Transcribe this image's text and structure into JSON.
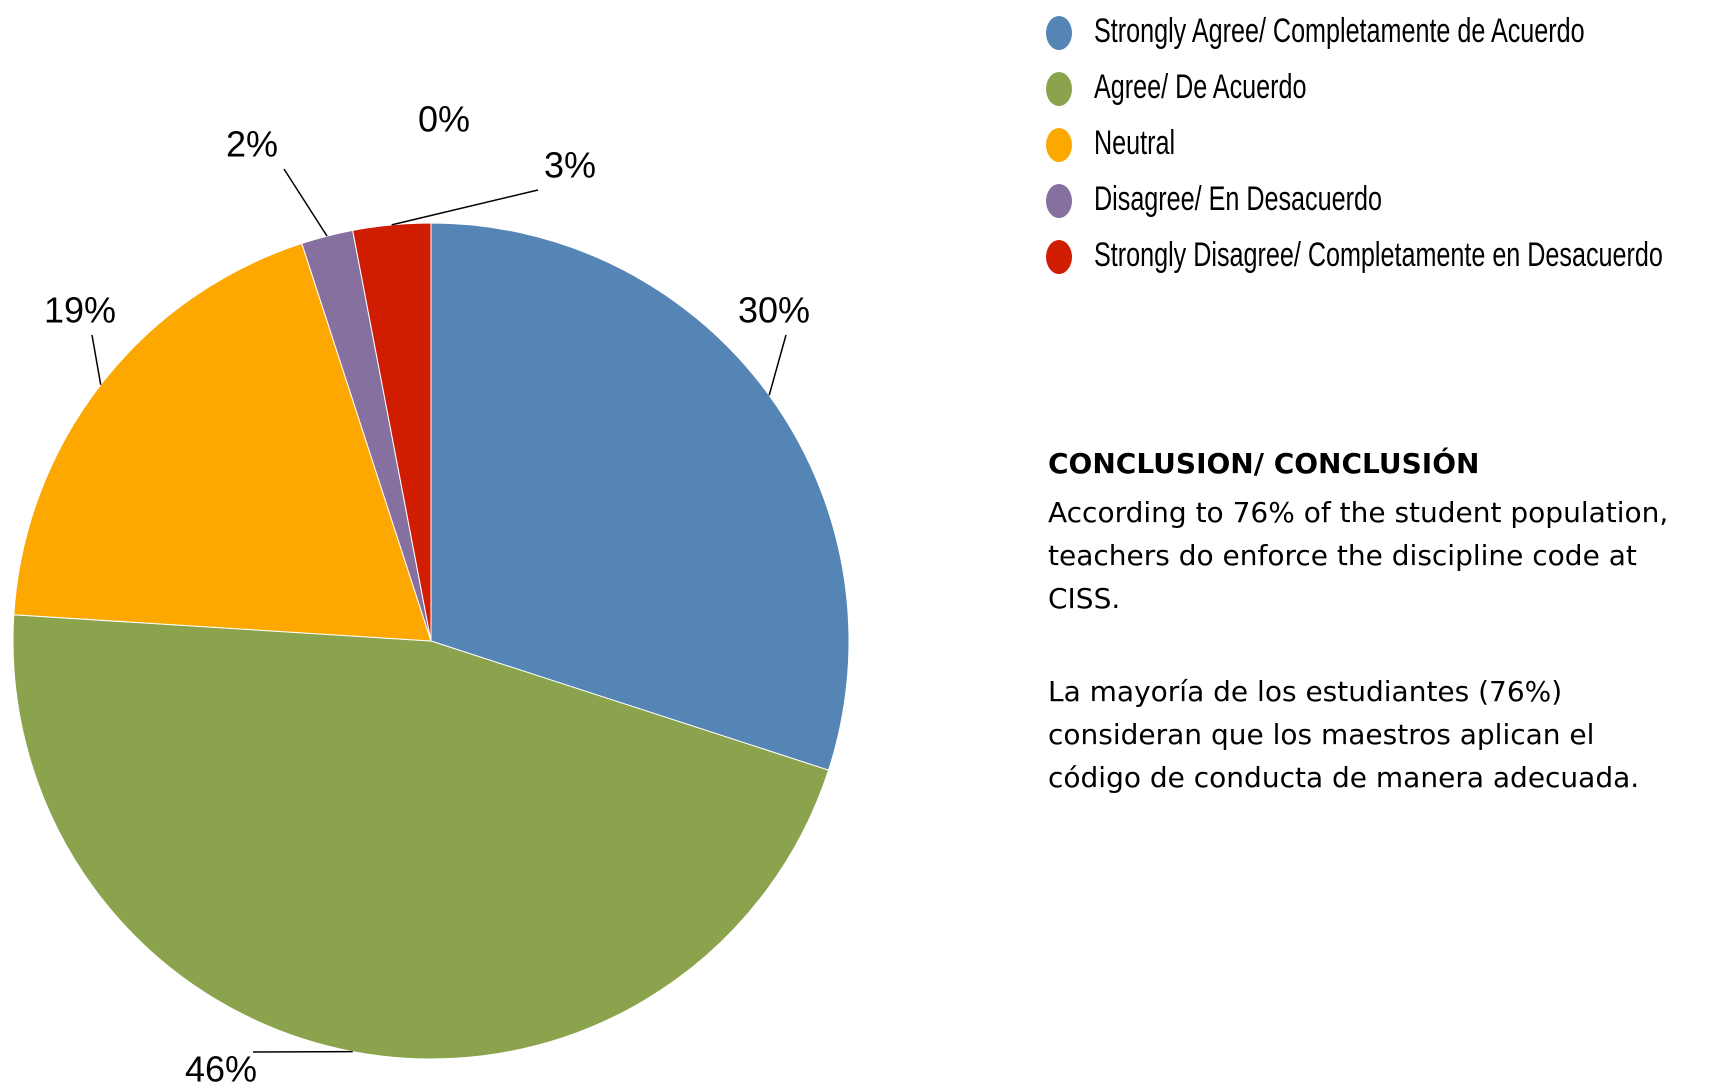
{
  "chart_data": {
    "type": "pie",
    "categories": [
      "Strongly Agree/ Completamente de Acuerdo",
      "Agree/ De Acuerdo",
      "Neutral",
      "Disagree/ En Desacuerdo",
      null,
      "Strongly Disagree/ Completamente en Desacuerdo"
    ],
    "values": [
      30,
      46,
      19,
      2,
      0,
      3
    ],
    "value_labels": [
      "30%",
      "46%",
      "19%",
      "2%",
      "0%",
      "3%"
    ],
    "colors": [
      "#5585b5",
      "#8aa34c",
      "#fca800",
      "#8570a0",
      null,
      "#d01c00"
    ],
    "legend": "top-right"
  },
  "conclusion": {
    "heading": "CONCLUSION/ CONCLUSIÓN",
    "paragraphs": [
      [
        "According to 76% of the student population,",
        "teachers do enforce the discipline code at",
        "CISS."
      ],
      [
        "La mayoría de los estudiantes (76%)",
        "consideran que los maestros aplican el",
        "código de conducta de manera adecuada."
      ]
    ]
  }
}
